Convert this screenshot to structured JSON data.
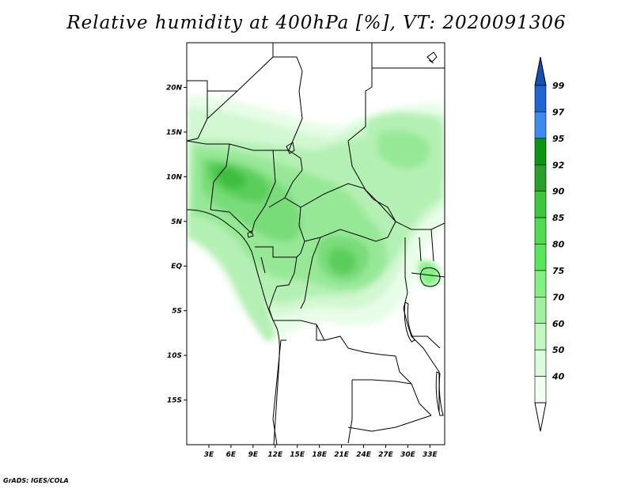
{
  "title": "Relative humidity at 400hPa [%], VT: 2020091306",
  "credit": "GrADS: IGES/COLA",
  "map": {
    "lat_labels": [
      "20N",
      "15N",
      "10N",
      "5N",
      "EQ",
      "5S",
      "10S",
      "15S"
    ],
    "lat_values": [
      20,
      15,
      10,
      5,
      0,
      -5,
      -10,
      -15
    ],
    "lon_labels": [
      "3E",
      "6E",
      "9E",
      "12E",
      "15E",
      "18E",
      "21E",
      "24E",
      "27E",
      "30E",
      "33E"
    ],
    "lon_values": [
      3,
      6,
      9,
      12,
      15,
      18,
      21,
      24,
      27,
      30,
      33
    ],
    "lon_range": [
      0,
      35
    ],
    "lat_range": [
      -20,
      25
    ]
  },
  "colorbar": {
    "labels": [
      "99",
      "97",
      "95",
      "92",
      "90",
      "85",
      "80",
      "75",
      "70",
      "60",
      "50",
      "40"
    ],
    "colors": [
      "#1e64d2",
      "#3c8cf0",
      "#0a9614",
      "#28a028",
      "#3cc83c",
      "#50dc50",
      "#5ae65a",
      "#82f082",
      "#a0f0a0",
      "#c0f8c0",
      "#dcfadc",
      "#f0fff0"
    ],
    "cap_top_color": "#1450b4"
  }
}
